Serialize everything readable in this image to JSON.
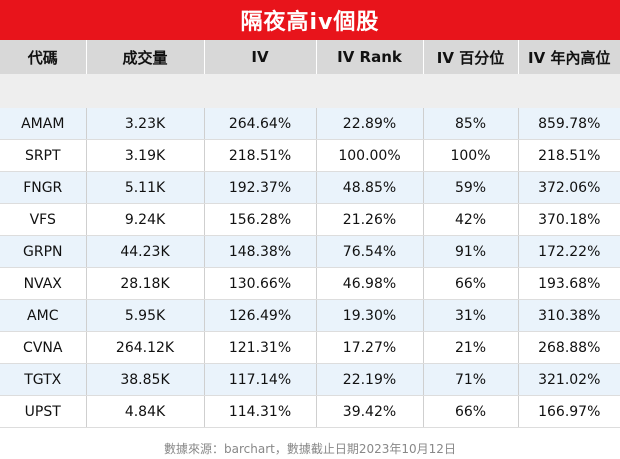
{
  "title": "隔夜高iv個股",
  "columns": [
    "代碼",
    "成交量",
    "IV",
    "IV Rank",
    "IV 百分位",
    "IV 年內高位"
  ],
  "rows": [
    [
      "AMAM",
      "3.23K",
      "264.64%",
      "22.89%",
      "85%",
      "859.78%"
    ],
    [
      "SRPT",
      "3.19K",
      "218.51%",
      "100.00%",
      "100%",
      "218.51%"
    ],
    [
      "FNGR",
      "5.11K",
      "192.37%",
      "48.85%",
      "59%",
      "372.06%"
    ],
    [
      "VFS",
      "9.24K",
      "156.28%",
      "21.26%",
      "42%",
      "370.18%"
    ],
    [
      "GRPN",
      "44.23K",
      "148.38%",
      "76.54%",
      "91%",
      "172.22%"
    ],
    [
      "NVAX",
      "28.18K",
      "130.66%",
      "46.98%",
      "66%",
      "193.68%"
    ],
    [
      "AMC",
      "5.95K",
      "126.49%",
      "19.30%",
      "31%",
      "310.38%"
    ],
    [
      "CVNA",
      "264.12K",
      "121.31%",
      "17.27%",
      "21%",
      "268.88%"
    ],
    [
      "TGTX",
      "38.85K",
      "117.14%",
      "22.19%",
      "71%",
      "321.02%"
    ],
    [
      "UPST",
      "4.84K",
      "114.31%",
      "39.42%",
      "66%",
      "166.97%"
    ]
  ],
  "footer": "數據來源：barchart，數據截止日期2023年10月12日",
  "colors": {
    "title_bg": "#e8141b",
    "header_bg": "#d8d8d8",
    "stripe": "#eaf3fb"
  }
}
